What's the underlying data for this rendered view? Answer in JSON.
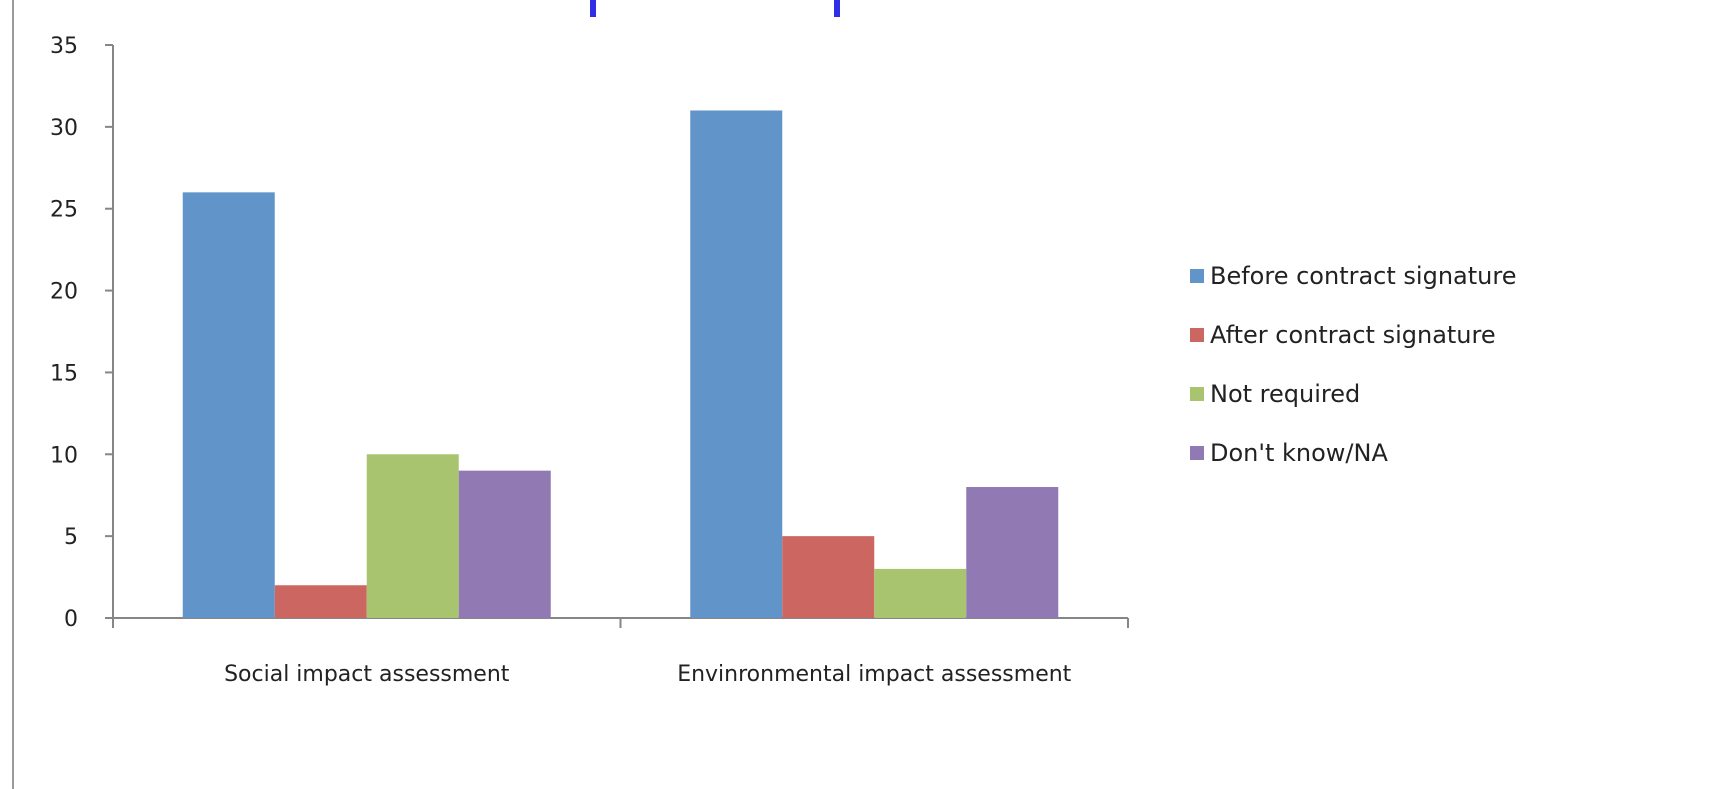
{
  "chart_data": {
    "type": "bar",
    "categories": [
      "Social impact assessment",
      "Envinronmental impact assessment"
    ],
    "series": [
      {
        "name": "Before contract signature",
        "values": [
          26,
          31
        ],
        "color": "#6195c9"
      },
      {
        "name": "After contract signature",
        "values": [
          2,
          5
        ],
        "color": "#cb6660"
      },
      {
        "name": "Not required",
        "values": [
          10,
          3
        ],
        "color": "#a8c46e"
      },
      {
        "name": "Don't know/NA",
        "values": [
          9,
          8
        ],
        "color": "#9179b3"
      }
    ],
    "y_ticks": [
      "0",
      "5",
      "10",
      "15",
      "20",
      "25",
      "30",
      "35"
    ],
    "ylim": [
      0,
      35
    ],
    "grid": false,
    "legend_position": "right",
    "title_fragment_color": "#2e2ee6"
  }
}
